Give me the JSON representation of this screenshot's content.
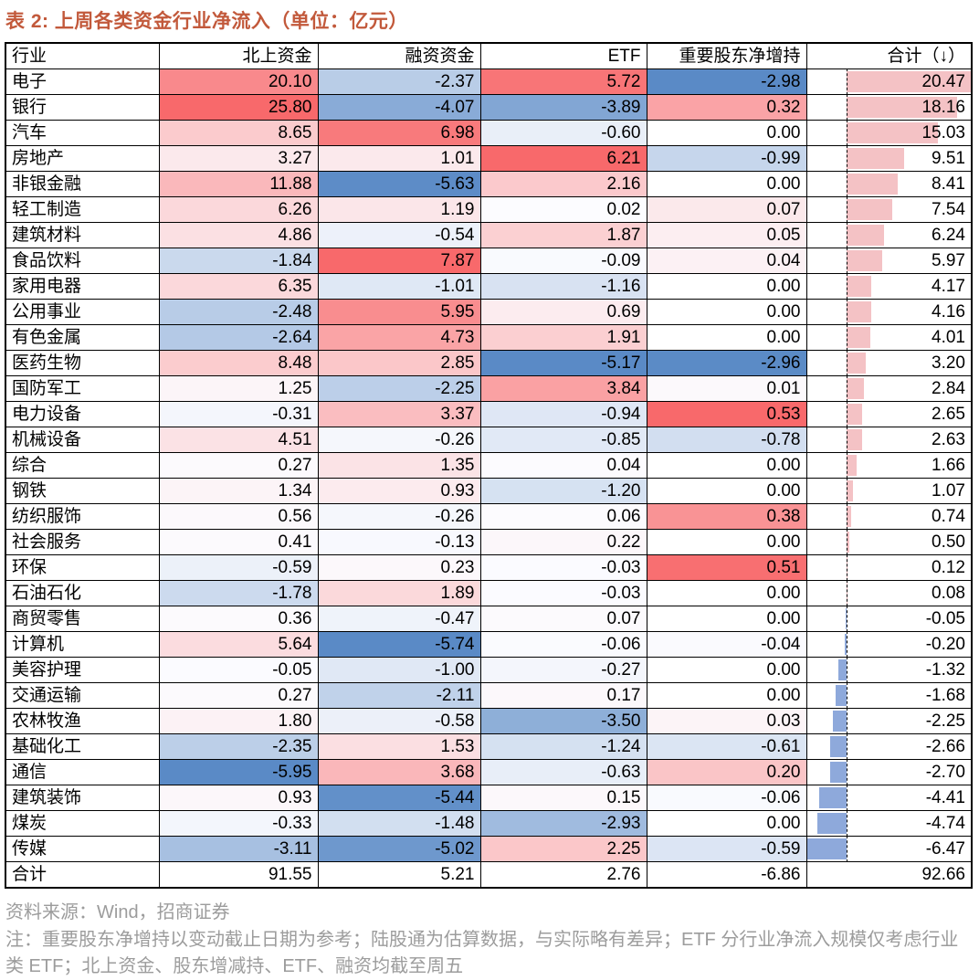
{
  "chart_data": {
    "type": "table",
    "title": "表 2: 上周各类资金行业净流入（单位：亿元）",
    "unit": "亿元",
    "columns": [
      "行业",
      "北上资金",
      "融资资金",
      "ETF",
      "重要股东净增持",
      "合计（↓）"
    ],
    "sort_note": "sorted descending by 合计",
    "rows": [
      {
        "industry": "电子",
        "values": [
          20.1,
          -2.37,
          5.72,
          -2.98
        ],
        "total": 20.47
      },
      {
        "industry": "银行",
        "values": [
          25.8,
          -4.07,
          -3.89,
          0.32
        ],
        "total": 18.16
      },
      {
        "industry": "汽车",
        "values": [
          8.65,
          6.98,
          -0.6,
          0.0
        ],
        "total": 15.03
      },
      {
        "industry": "房地产",
        "values": [
          3.27,
          1.01,
          6.21,
          -0.99
        ],
        "total": 9.51
      },
      {
        "industry": "非银金融",
        "values": [
          11.88,
          -5.63,
          2.16,
          0.0
        ],
        "total": 8.41
      },
      {
        "industry": "轻工制造",
        "values": [
          6.26,
          1.19,
          0.02,
          0.07
        ],
        "total": 7.54
      },
      {
        "industry": "建筑材料",
        "values": [
          4.86,
          -0.54,
          1.87,
          0.05
        ],
        "total": 6.24
      },
      {
        "industry": "食品饮料",
        "values": [
          -1.84,
          7.87,
          -0.09,
          0.04
        ],
        "total": 5.97
      },
      {
        "industry": "家用电器",
        "values": [
          6.35,
          -1.01,
          -1.16,
          0.0
        ],
        "total": 4.17
      },
      {
        "industry": "公用事业",
        "values": [
          -2.48,
          5.95,
          0.69,
          0.0
        ],
        "total": 4.16
      },
      {
        "industry": "有色金属",
        "values": [
          -2.64,
          4.73,
          1.91,
          0.0
        ],
        "total": 4.01
      },
      {
        "industry": "医药生物",
        "values": [
          8.48,
          2.85,
          -5.17,
          -2.96
        ],
        "total": 3.2
      },
      {
        "industry": "国防军工",
        "values": [
          1.25,
          -2.25,
          3.84,
          0.01
        ],
        "total": 2.84
      },
      {
        "industry": "电力设备",
        "values": [
          -0.31,
          3.37,
          -0.94,
          0.53
        ],
        "total": 2.65
      },
      {
        "industry": "机械设备",
        "values": [
          4.51,
          -0.26,
          -0.85,
          -0.78
        ],
        "total": 2.63
      },
      {
        "industry": "综合",
        "values": [
          0.27,
          1.35,
          0.04,
          0.0
        ],
        "total": 1.66
      },
      {
        "industry": "钢铁",
        "values": [
          1.34,
          0.93,
          -1.2,
          0.0
        ],
        "total": 1.07
      },
      {
        "industry": "纺织服饰",
        "values": [
          0.56,
          -0.26,
          0.06,
          0.38
        ],
        "total": 0.74
      },
      {
        "industry": "社会服务",
        "values": [
          0.41,
          -0.13,
          0.22,
          0.0
        ],
        "total": 0.5
      },
      {
        "industry": "环保",
        "values": [
          -0.59,
          0.23,
          -0.03,
          0.51
        ],
        "total": 0.12
      },
      {
        "industry": "石油石化",
        "values": [
          -1.78,
          1.89,
          -0.03,
          0.0
        ],
        "total": 0.08
      },
      {
        "industry": "商贸零售",
        "values": [
          0.36,
          -0.47,
          0.07,
          0.0
        ],
        "total": -0.05
      },
      {
        "industry": "计算机",
        "values": [
          5.64,
          -5.74,
          -0.06,
          -0.04
        ],
        "total": -0.2
      },
      {
        "industry": "美容护理",
        "values": [
          -0.05,
          -1.0,
          -0.27,
          0.0
        ],
        "total": -1.32
      },
      {
        "industry": "交通运输",
        "values": [
          0.27,
          -2.11,
          0.17,
          0.0
        ],
        "total": -1.68
      },
      {
        "industry": "农林牧渔",
        "values": [
          1.8,
          -0.58,
          -3.5,
          0.03
        ],
        "total": -2.25
      },
      {
        "industry": "基础化工",
        "values": [
          -2.35,
          1.53,
          -1.24,
          -0.61
        ],
        "total": -2.66
      },
      {
        "industry": "通信",
        "values": [
          -5.95,
          3.68,
          -0.63,
          0.2
        ],
        "total": -2.7
      },
      {
        "industry": "建筑装饰",
        "values": [
          0.93,
          -5.44,
          0.15,
          -0.06
        ],
        "total": -4.41
      },
      {
        "industry": "煤炭",
        "values": [
          -0.33,
          -1.48,
          -2.93,
          0.0
        ],
        "total": -4.74
      },
      {
        "industry": "传媒",
        "values": [
          -3.11,
          -5.02,
          2.25,
          -0.59
        ],
        "total": -6.47
      }
    ],
    "total_row": {
      "industry": "合计",
      "values": [
        91.55,
        5.21,
        2.76,
        -6.86
      ],
      "total": 92.66
    },
    "conditional_formatting": {
      "description": "per-column 3-color scale: white at 0, red at column max, blue at column min; 合计 column shows data bars with dashed zero axis",
      "scale_max_color": "#F8696B",
      "scale_mid_color": "#FCFCFF",
      "scale_min_color": "#5A8AC6",
      "bar_positive_color": "#F4C2C5",
      "bar_negative_color": "#8EA9DB"
    }
  },
  "footer": {
    "source": "资料来源：Wind，招商证券",
    "note": "注：重要股东净增持以变动截止日期为参考；陆股通为估算数据，与实际略有差异；ETF 分行业净流入规模仅考虑行业类 ETF；北上资金、股东增减持、ETF、融资均截至周五"
  },
  "colors": {
    "title": "#C2593B",
    "footer_text": "#9C9C9C",
    "border": "#000000",
    "background": "#FFFFFF"
  }
}
